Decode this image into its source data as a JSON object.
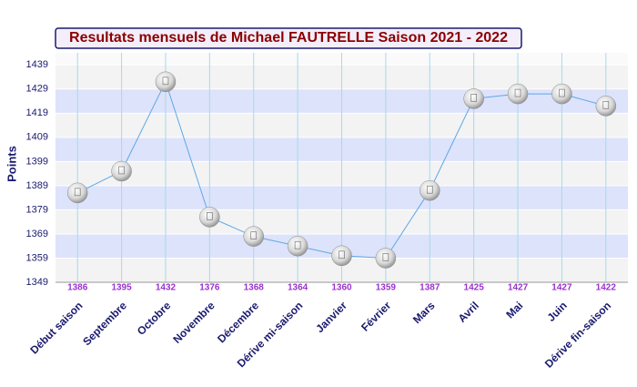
{
  "chart_data": {
    "type": "line",
    "title": "Resultats mensuels de Michael FAUTRELLE Saison 2021 - 2022",
    "y_label": "Points",
    "categories": [
      "Début saison",
      "Septembre",
      "Octobre",
      "Novembre",
      "Décembre",
      "Dérive mi-saison",
      "Janvier",
      "Février",
      "Mars",
      "Avril",
      "Mai",
      "Juin",
      "Dérive fin-saison"
    ],
    "values": [
      1386,
      1395,
      1432,
      1376,
      1368,
      1364,
      1360,
      1359,
      1387,
      1425,
      1427,
      1427,
      1422
    ],
    "color": "#5ea8e6",
    "ylim": [
      1349,
      1444
    ],
    "yticks": [
      1349,
      1359,
      1369,
      1379,
      1389,
      1399,
      1409,
      1419,
      1429,
      1439
    ],
    "grid": true
  }
}
